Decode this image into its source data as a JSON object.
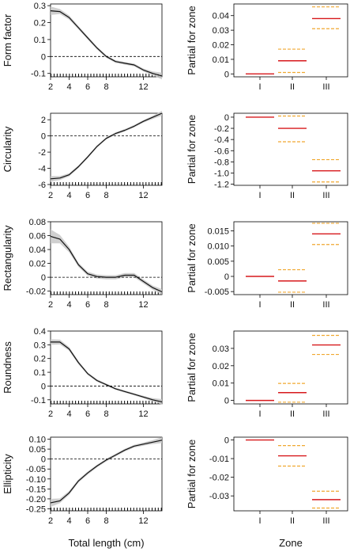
{
  "chart_data": [
    {
      "type": "line",
      "row": 0,
      "ylabel": "Form factor",
      "xlabel": "",
      "xlim": [
        2,
        14
      ],
      "ylim": [
        -0.12,
        0.31
      ],
      "yticks": [
        -0.1,
        0,
        0.1,
        0.2,
        0.3
      ],
      "ytick_labels": [
        "-0.1",
        "0",
        "0.1",
        "0.2",
        "0.3"
      ],
      "xticks": [
        2,
        4,
        6,
        8,
        12
      ],
      "xtick_labels": [
        "2",
        "4",
        "6",
        "8",
        "12"
      ],
      "hline": 0,
      "band": true,
      "x": [
        2.0,
        3.0,
        4.0,
        5.0,
        6.0,
        7.0,
        8.0,
        9.0,
        10.0,
        11.0,
        12.0,
        13.0,
        14.0
      ],
      "y": [
        0.27,
        0.265,
        0.23,
        0.17,
        0.11,
        0.05,
        0.0,
        -0.03,
        -0.04,
        -0.05,
        -0.08,
        -0.1,
        -0.115
      ],
      "se": [
        0.025,
        0.015,
        0.012,
        0.01,
        0.01,
        0.009,
        0.008,
        0.008,
        0.008,
        0.008,
        0.009,
        0.012,
        0.02
      ]
    },
    {
      "type": "line",
      "row": 1,
      "ylabel": "Circularity",
      "xlabel": "",
      "xlim": [
        2,
        14
      ],
      "ylim": [
        -6.1,
        2.8
      ],
      "yticks": [
        -6,
        -4,
        -2,
        0,
        2
      ],
      "ytick_labels": [
        "-6",
        "-4",
        "-2",
        "0",
        "2"
      ],
      "xticks": [
        2,
        4,
        6,
        8,
        12
      ],
      "xtick_labels": [
        "2",
        "4",
        "6",
        "8",
        "12"
      ],
      "hline": 0,
      "band": true,
      "x": [
        2.0,
        3.0,
        4.0,
        5.0,
        6.0,
        7.0,
        8.0,
        9.0,
        10.0,
        11.0,
        12.0,
        13.0,
        14.0
      ],
      "y": [
        -5.3,
        -5.2,
        -4.8,
        -3.8,
        -2.6,
        -1.3,
        -0.3,
        0.3,
        0.7,
        1.2,
        1.8,
        2.3,
        2.8
      ],
      "se": [
        0.35,
        0.25,
        0.2,
        0.18,
        0.16,
        0.15,
        0.15,
        0.15,
        0.15,
        0.15,
        0.16,
        0.2,
        0.3
      ]
    },
    {
      "type": "line",
      "row": 2,
      "ylabel": "Rectangularity",
      "xlabel": "",
      "xlim": [
        2,
        14
      ],
      "ylim": [
        -0.025,
        0.08
      ],
      "yticks": [
        -0.02,
        0,
        0.02,
        0.04,
        0.06,
        0.08
      ],
      "ytick_labels": [
        "-0.02",
        "0",
        "0.02",
        "0.04",
        "0.06",
        "0.08"
      ],
      "xticks": [
        2,
        4,
        6,
        8,
        12
      ],
      "xtick_labels": [
        "2",
        "4",
        "6",
        "8",
        "12"
      ],
      "hline": 0,
      "band": true,
      "x": [
        2.0,
        3.0,
        4.0,
        5.0,
        6.0,
        7.0,
        8.0,
        9.0,
        10.0,
        11.0,
        12.0,
        13.0,
        14.0
      ],
      "y": [
        0.059,
        0.055,
        0.04,
        0.018,
        0.005,
        0.001,
        0.0,
        0.0,
        0.003,
        0.003,
        -0.006,
        -0.015,
        -0.021
      ],
      "se": [
        0.01,
        0.006,
        0.004,
        0.003,
        0.003,
        0.003,
        0.003,
        0.003,
        0.003,
        0.003,
        0.003,
        0.003,
        0.004
      ]
    },
    {
      "type": "line",
      "row": 3,
      "ylabel": "Roundness",
      "xlabel": "",
      "xlim": [
        2,
        14
      ],
      "ylim": [
        -0.13,
        0.4
      ],
      "yticks": [
        -0.1,
        0,
        0.1,
        0.2,
        0.3,
        0.4
      ],
      "ytick_labels": [
        "-0.1",
        "0",
        "0.1",
        "0.2",
        "0.3",
        "0.4"
      ],
      "xticks": [
        2,
        4,
        6,
        8,
        12
      ],
      "xtick_labels": [
        "2",
        "4",
        "6",
        "8",
        "12"
      ],
      "hline": 0,
      "band": true,
      "x": [
        2.0,
        3.0,
        4.0,
        5.0,
        6.0,
        7.0,
        8.0,
        9.0,
        10.0,
        11.0,
        12.0,
        13.0,
        14.0
      ],
      "y": [
        0.32,
        0.32,
        0.27,
        0.17,
        0.09,
        0.04,
        0.01,
        -0.02,
        -0.04,
        -0.06,
        -0.08,
        -0.1,
        -0.115
      ],
      "se": [
        0.02,
        0.018,
        0.014,
        0.012,
        0.01,
        0.009,
        0.008,
        0.008,
        0.008,
        0.008,
        0.009,
        0.012,
        0.02
      ]
    },
    {
      "type": "line",
      "row": 4,
      "ylabel": "Ellipticity",
      "xlabel": "Total length (cm)",
      "xlim": [
        2,
        14
      ],
      "ylim": [
        -0.26,
        0.11
      ],
      "yticks": [
        -0.25,
        -0.2,
        -0.15,
        -0.1,
        -0.05,
        0,
        0.05,
        0.1
      ],
      "ytick_labels": [
        "-0.25",
        "-0.20",
        "-0.15",
        "-0.10",
        "-0.05",
        "0",
        "0.05",
        "0.10"
      ],
      "xticks": [
        2,
        4,
        6,
        8,
        12
      ],
      "xtick_labels": [
        "2",
        "4",
        "6",
        "8",
        "12"
      ],
      "hline": 0,
      "band": true,
      "x": [
        2.0,
        3.0,
        4.0,
        5.0,
        6.0,
        7.0,
        8.0,
        9.0,
        10.0,
        11.0,
        12.0,
        13.0,
        14.0
      ],
      "y": [
        -0.22,
        -0.21,
        -0.17,
        -0.11,
        -0.07,
        -0.035,
        -0.005,
        0.02,
        0.045,
        0.065,
        0.075,
        0.085,
        0.095
      ],
      "se": [
        0.02,
        0.012,
        0.01,
        0.008,
        0.008,
        0.007,
        0.007,
        0.007,
        0.007,
        0.007,
        0.008,
        0.01,
        0.015
      ]
    },
    {
      "type": "effects",
      "row": 0,
      "ylabel": "Partial for zone",
      "xlabel": "",
      "categories": [
        "I",
        "II",
        "III"
      ],
      "ylim": [
        -0.002,
        0.048
      ],
      "yticks": [
        0,
        0.01,
        0.02,
        0.03,
        0.04
      ],
      "ytick_labels": [
        "0",
        "0.01",
        "0.02",
        "0.03",
        "0.04"
      ],
      "values": [
        0,
        0.009,
        0.038
      ],
      "lower": [
        0,
        0.001,
        0.031
      ],
      "upper": [
        0,
        0.017,
        0.046
      ],
      "colors": {
        "estimate": "#d7191c",
        "ci": "#f0a830"
      }
    },
    {
      "type": "effects",
      "row": 1,
      "ylabel": "Partial for zone",
      "xlabel": "",
      "categories": [
        "I",
        "II",
        "III"
      ],
      "ylim": [
        -1.22,
        0.07
      ],
      "yticks": [
        -1.2,
        -1.0,
        -0.8,
        -0.6,
        -0.4,
        -0.2,
        0
      ],
      "ytick_labels": [
        "-1.2",
        "-1.0",
        "-0.8",
        "-0.6",
        "-0.4",
        "-0.2",
        "0"
      ],
      "values": [
        0,
        -0.2,
        -0.96
      ],
      "lower": [
        0,
        -0.44,
        -1.16
      ],
      "upper": [
        0,
        0.02,
        -0.76
      ],
      "colors": {
        "estimate": "#d7191c",
        "ci": "#f0a830"
      }
    },
    {
      "type": "effects",
      "row": 2,
      "ylabel": "Partial for zone",
      "xlabel": "",
      "categories": [
        "I",
        "II",
        "III"
      ],
      "ylim": [
        -0.006,
        0.018
      ],
      "yticks": [
        -0.005,
        0,
        0.005,
        0.01,
        0.015
      ],
      "ytick_labels": [
        "-0.005",
        "0",
        "0.005",
        "0.010",
        "0.015"
      ],
      "values": [
        0,
        -0.0015,
        0.014
      ],
      "lower": [
        0,
        -0.0052,
        0.0105
      ],
      "upper": [
        0,
        0.0022,
        0.0175
      ],
      "colors": {
        "estimate": "#d7191c",
        "ci": "#f0a830"
      }
    },
    {
      "type": "effects",
      "row": 3,
      "ylabel": "Partial for zone",
      "xlabel": "",
      "categories": [
        "I",
        "II",
        "III"
      ],
      "ylim": [
        -0.002,
        0.04
      ],
      "yticks": [
        0,
        0.01,
        0.02,
        0.03
      ],
      "ytick_labels": [
        "0",
        "0.01",
        "0.02",
        "0.03"
      ],
      "values": [
        0,
        0.0045,
        0.032
      ],
      "lower": [
        0,
        -0.001,
        0.0265
      ],
      "upper": [
        0,
        0.0098,
        0.0375
      ],
      "colors": {
        "estimate": "#d7191c",
        "ci": "#f0a830"
      }
    },
    {
      "type": "effects",
      "row": 4,
      "ylabel": "Partial for zone",
      "xlabel": "Zone",
      "categories": [
        "I",
        "II",
        "III"
      ],
      "ylim": [
        -0.038,
        0.0015
      ],
      "yticks": [
        -0.03,
        -0.02,
        -0.01,
        0
      ],
      "ytick_labels": [
        "-0.03",
        "-0.02",
        "-0.01",
        "0"
      ],
      "values": [
        0,
        -0.0085,
        -0.032
      ],
      "lower": [
        0,
        -0.014,
        -0.0365
      ],
      "upper": [
        0,
        -0.003,
        -0.0275
      ],
      "colors": {
        "estimate": "#d7191c",
        "ci": "#f0a830"
      }
    }
  ]
}
